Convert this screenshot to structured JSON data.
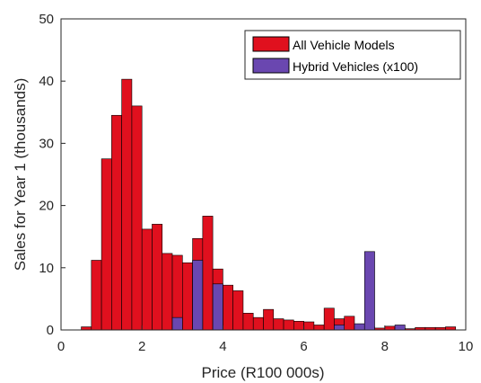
{
  "chart_data": {
    "type": "bar",
    "subtype": "histogram-overlay",
    "xlabel": "Price (R100 000s)",
    "ylabel": "Sales for Year 1 (thousands)",
    "xlim": [
      0,
      10
    ],
    "ylim": [
      0,
      50
    ],
    "xticks": [
      0,
      2,
      4,
      6,
      8,
      10
    ],
    "yticks": [
      0,
      10,
      20,
      30,
      40,
      50
    ],
    "grid": false,
    "legend_position": "top-right",
    "colors": {
      "all": "#e0101e",
      "hybrid": "#6a47b0",
      "edge": "#000000"
    },
    "series": [
      {
        "name": "All Vehicle Models",
        "bin_width": 0.25,
        "bins": [
          {
            "x0": 0.5,
            "value": 0.5
          },
          {
            "x0": 0.75,
            "value": 11.2
          },
          {
            "x0": 1.0,
            "value": 27.5
          },
          {
            "x0": 1.25,
            "value": 34.5
          },
          {
            "x0": 1.5,
            "value": 40.3
          },
          {
            "x0": 1.75,
            "value": 36.0
          },
          {
            "x0": 2.0,
            "value": 16.2
          },
          {
            "x0": 2.25,
            "value": 17.0
          },
          {
            "x0": 2.5,
            "value": 12.3
          },
          {
            "x0": 2.75,
            "value": 12.0
          },
          {
            "x0": 3.0,
            "value": 10.8
          },
          {
            "x0": 3.25,
            "value": 14.7
          },
          {
            "x0": 3.5,
            "value": 18.3
          },
          {
            "x0": 3.75,
            "value": 9.8
          },
          {
            "x0": 4.0,
            "value": 7.2
          },
          {
            "x0": 4.25,
            "value": 6.3
          },
          {
            "x0": 4.5,
            "value": 2.7
          },
          {
            "x0": 4.75,
            "value": 2.0
          },
          {
            "x0": 5.0,
            "value": 3.3
          },
          {
            "x0": 5.25,
            "value": 1.8
          },
          {
            "x0": 5.5,
            "value": 1.6
          },
          {
            "x0": 5.75,
            "value": 1.4
          },
          {
            "x0": 6.0,
            "value": 1.3
          },
          {
            "x0": 6.25,
            "value": 0.8
          },
          {
            "x0": 6.5,
            "value": 3.5
          },
          {
            "x0": 6.75,
            "value": 1.8
          },
          {
            "x0": 7.0,
            "value": 2.2
          },
          {
            "x0": 7.25,
            "value": 0.6
          },
          {
            "x0": 7.5,
            "value": 0.5
          },
          {
            "x0": 7.75,
            "value": 0.3
          },
          {
            "x0": 8.0,
            "value": 0.6
          },
          {
            "x0": 8.25,
            "value": 0.3
          },
          {
            "x0": 8.5,
            "value": 0.2
          },
          {
            "x0": 8.75,
            "value": 0.4
          },
          {
            "x0": 9.0,
            "value": 0.4
          },
          {
            "x0": 9.25,
            "value": 0.4
          },
          {
            "x0": 9.5,
            "value": 0.5
          }
        ]
      },
      {
        "name": "Hybrid Vehicles (x100)",
        "bin_width": 0.25,
        "bins": [
          {
            "x0": 2.75,
            "value": 2.0
          },
          {
            "x0": 3.25,
            "value": 11.2
          },
          {
            "x0": 3.75,
            "value": 7.4
          },
          {
            "x0": 6.75,
            "value": 0.8
          },
          {
            "x0": 7.25,
            "value": 1.0
          },
          {
            "x0": 7.5,
            "value": 12.6
          },
          {
            "x0": 8.25,
            "value": 0.8
          }
        ]
      }
    ]
  }
}
